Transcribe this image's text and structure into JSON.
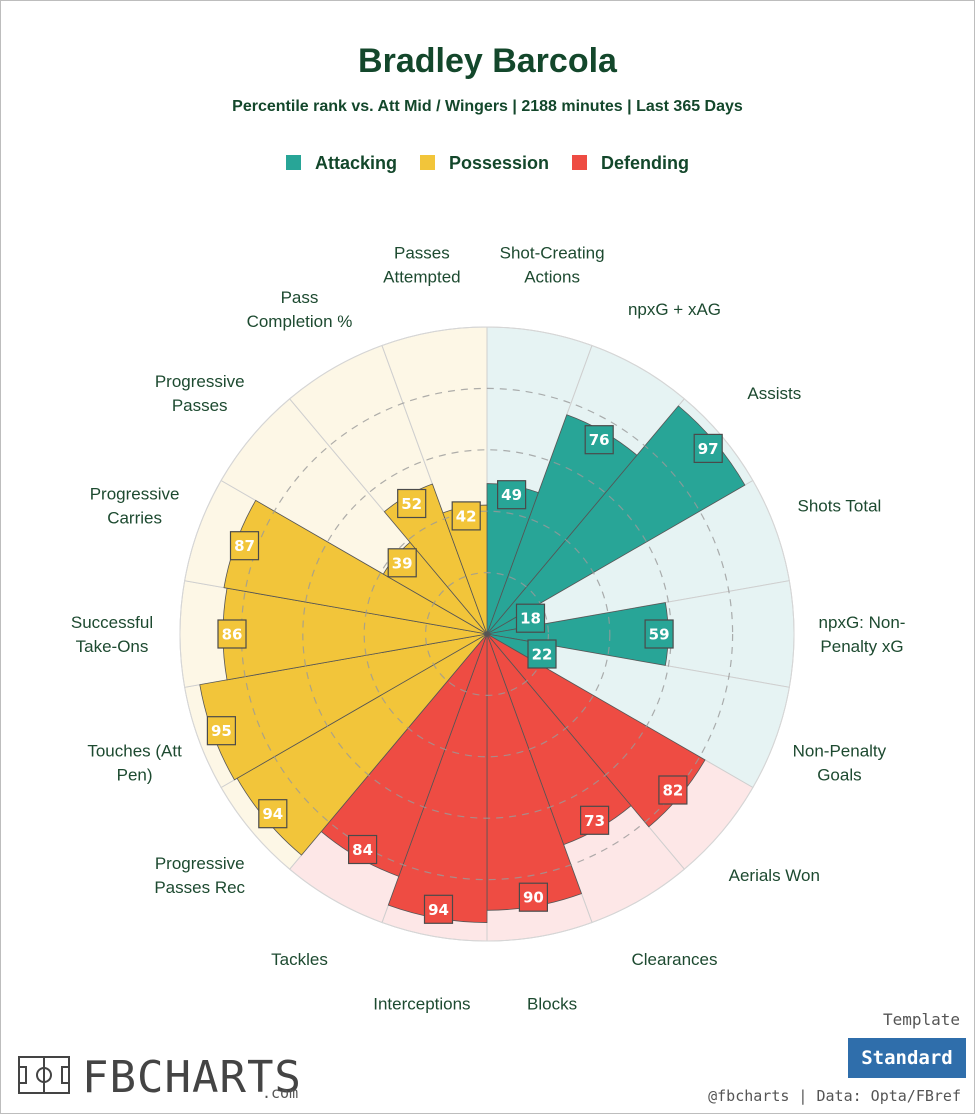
{
  "chart_data": {
    "type": "radar",
    "title": "Bradley Barcola",
    "subtitle": "Percentile rank vs. Att Mid / Wingers | 2188 minutes | Last 365 Days",
    "rlim": [
      0,
      100
    ],
    "legend": [
      {
        "name": "Attacking",
        "color": "#28a597"
      },
      {
        "name": "Possession",
        "color": "#f2c53a"
      },
      {
        "name": "Defending",
        "color": "#ee4c43"
      }
    ],
    "series": [
      {
        "name": "Attacking",
        "color": "#28a597",
        "bg": "#e6f3f3",
        "metrics": [
          {
            "label": "Shot-Creating Actions",
            "value": 49
          },
          {
            "label": "npxG + xAG",
            "value": 76
          },
          {
            "label": "Assists",
            "value": 97
          },
          {
            "label": "Shots Total",
            "value": 18
          },
          {
            "label": "npxG: Non-Penalty xG",
            "value": 59
          },
          {
            "label": "Non-Penalty Goals",
            "value": 22
          }
        ]
      },
      {
        "name": "Defending",
        "color": "#ee4c43",
        "bg": "#fde7e7",
        "metrics": [
          {
            "label": "Aerials Won",
            "value": 82
          },
          {
            "label": "Clearances",
            "value": 73
          },
          {
            "label": "Blocks",
            "value": 90
          },
          {
            "label": "Interceptions",
            "value": 94
          },
          {
            "label": "Tackles",
            "value": 84
          }
        ]
      },
      {
        "name": "Possession",
        "color": "#f2c53a",
        "bg": "#fdf7e6",
        "metrics": [
          {
            "label": "Progressive Passes Rec",
            "value": 94
          },
          {
            "label": "Touches (Att Pen)",
            "value": 95
          },
          {
            "label": "Successful Take-Ons",
            "value": 86
          },
          {
            "label": "Progressive Carries",
            "value": 87
          },
          {
            "label": "Progressive Passes",
            "value": 39
          },
          {
            "label": "Pass Completion %",
            "value": 52
          },
          {
            "label": "Passes Attempted",
            "value": 42
          }
        ]
      }
    ]
  },
  "labels_display": {
    "Shot-Creating Actions": [
      "Shot-Creating",
      "Actions"
    ],
    "npxG + xAG": [
      "npxG + xAG"
    ],
    "Assists": [
      "Assists"
    ],
    "Shots Total": [
      "Shots Total"
    ],
    "npxG: Non-Penalty xG": [
      "npxG: Non-",
      "Penalty xG"
    ],
    "Non-Penalty Goals": [
      "Non-Penalty",
      "Goals"
    ],
    "Aerials Won": [
      "Aerials Won"
    ],
    "Clearances": [
      "Clearances"
    ],
    "Blocks": [
      "Blocks"
    ],
    "Interceptions": [
      "Interceptions"
    ],
    "Tackles": [
      "Tackles"
    ],
    "Progressive Passes Rec": [
      "Progressive",
      "Passes Rec"
    ],
    "Touches (Att Pen)": [
      "Touches (Att",
      "Pen)"
    ],
    "Successful Take-Ons": [
      "Successful",
      "Take-Ons"
    ],
    "Progressive Carries": [
      "Progressive",
      "Carries"
    ],
    "Progressive Passes": [
      "Progressive",
      "Passes"
    ],
    "Pass Completion %": [
      "Pass",
      "Completion %"
    ],
    "Passes Attempted": [
      "Passes",
      "Attempted"
    ]
  },
  "footer": {
    "template_label": "Template",
    "template_value": "Standard",
    "credit": "@fbcharts | Data: Opta/FBref",
    "brand": "FBCHARTS",
    "brand_suffix": ".com"
  }
}
